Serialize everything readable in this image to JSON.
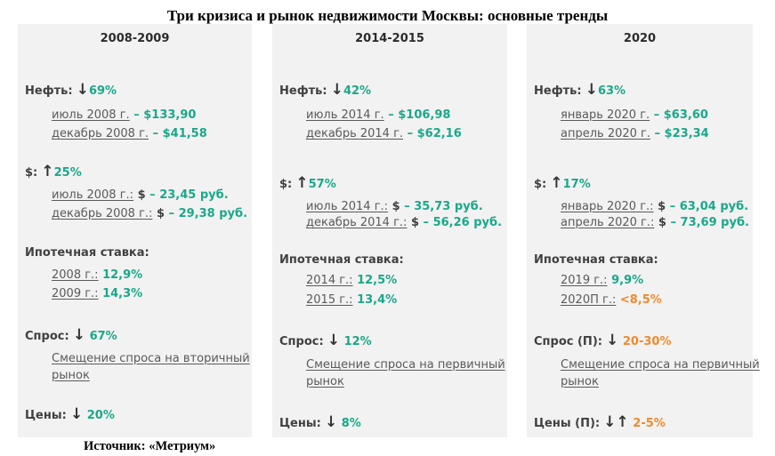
{
  "title": "Три кризиса и рынок недвижимости Москвы: основные тренды",
  "source": "Источник: «Метриум»",
  "colors": {
    "green": "#1aa88a",
    "orange": "#f08a2c",
    "panel_bg": "#f2f2f2"
  },
  "icons": {
    "down": "arrow-down-icon",
    "up": "arrow-up-icon"
  },
  "panels": [
    {
      "period": "2008-2009",
      "oil": {
        "label": "Нефть:",
        "arrow": "↓",
        "value": "69%",
        "line1_label": "июль 2008 г.",
        "line1_value": " – $133,90",
        "line2_label": "декабрь 2008 г.",
        "line2_value": " – $41,58"
      },
      "usd": {
        "label": "$:",
        "arrow": "↑",
        "value": "25%",
        "line1_label": "июль 2008 г.:",
        "line1_mid": " $ ",
        "line1_value": " – 23,45 руб.",
        "line2_label": "декабрь 2008 г.:",
        "line2_mid": " $ ",
        "line2_value": " – 29,38 руб."
      },
      "mortgage": {
        "label": "Ипотечная ставка:",
        "line1_label": "2008 г.:",
        "line1_value": " 12,9%",
        "line2_label": "2009 г.:",
        "line2_value": " 14,3%"
      },
      "demand": {
        "label": "Спрос:",
        "arrow": "↓",
        "value": " 67%",
        "note1": "Смещение спроса на вторичный",
        "note2": "рынок"
      },
      "prices": {
        "label": "Цены:",
        "arrow": "↓",
        "value": " 20%"
      }
    },
    {
      "period": "2014-2015",
      "oil": {
        "label": "Нефть:",
        "arrow": "↓",
        "value": "42%",
        "line1_label": "июль 2014 г.",
        "line1_value": " – $106,98",
        "line2_label": "декабрь 2014 г.",
        "line2_value": " – $62,16"
      },
      "usd": {
        "label": "$:",
        "arrow": "↑",
        "value": "57%",
        "line1_label": "июль 2014 г.:",
        "line1_mid": " $ ",
        "line1_value": " – 35,73 руб.",
        "line2_label": "декабрь 2014 г.:",
        "line2_mid": " $ ",
        "line2_value": " – 56,26 руб."
      },
      "mortgage": {
        "label": "Ипотечная ставка:",
        "line1_label": "2014 г.:",
        "line1_value": " 12,5%",
        "line2_label": "2015 г.:",
        "line2_value": " 13,4%"
      },
      "demand": {
        "label": "Спрос:",
        "arrow": "↓",
        "value": " 12%",
        "note1": "Смещение спроса на первичный",
        "note2": "рынок"
      },
      "prices": {
        "label": "Цены:",
        "arrow": "↓",
        "value": " 8%"
      }
    },
    {
      "period": "2020",
      "oil": {
        "label": "Нефть:",
        "arrow": "↓",
        "value": "63%",
        "line1_label": "январь 2020 г.",
        "line1_value": " – $63,60",
        "line2_label": "апрель 2020 г.",
        "line2_value": " – $23,34"
      },
      "usd": {
        "label": "$:",
        "arrow": "↑",
        "value": "17%",
        "line1_label": "январь 2020 г.:",
        "line1_mid": " $ ",
        "line1_value": " – 63,04 руб.",
        "line2_label": "апрель 2020 г.:",
        "line2_mid": " $ ",
        "line2_value": " – 73,69 руб."
      },
      "mortgage": {
        "label": "Ипотечная ставка:",
        "line1_label": "2019 г.:",
        "line1_value": " 9,9%",
        "line2_label": "2020П г.:",
        "line2_value": " <8,5%"
      },
      "demand": {
        "label": "Спрос (П):",
        "arrow": "↓",
        "value": " 20-30%",
        "note1": "Смещение спроса на первичный",
        "note2": "рынок"
      },
      "prices": {
        "label": "Цены (П):",
        "arrow": "↓↑",
        "value": " 2-5%"
      }
    }
  ]
}
